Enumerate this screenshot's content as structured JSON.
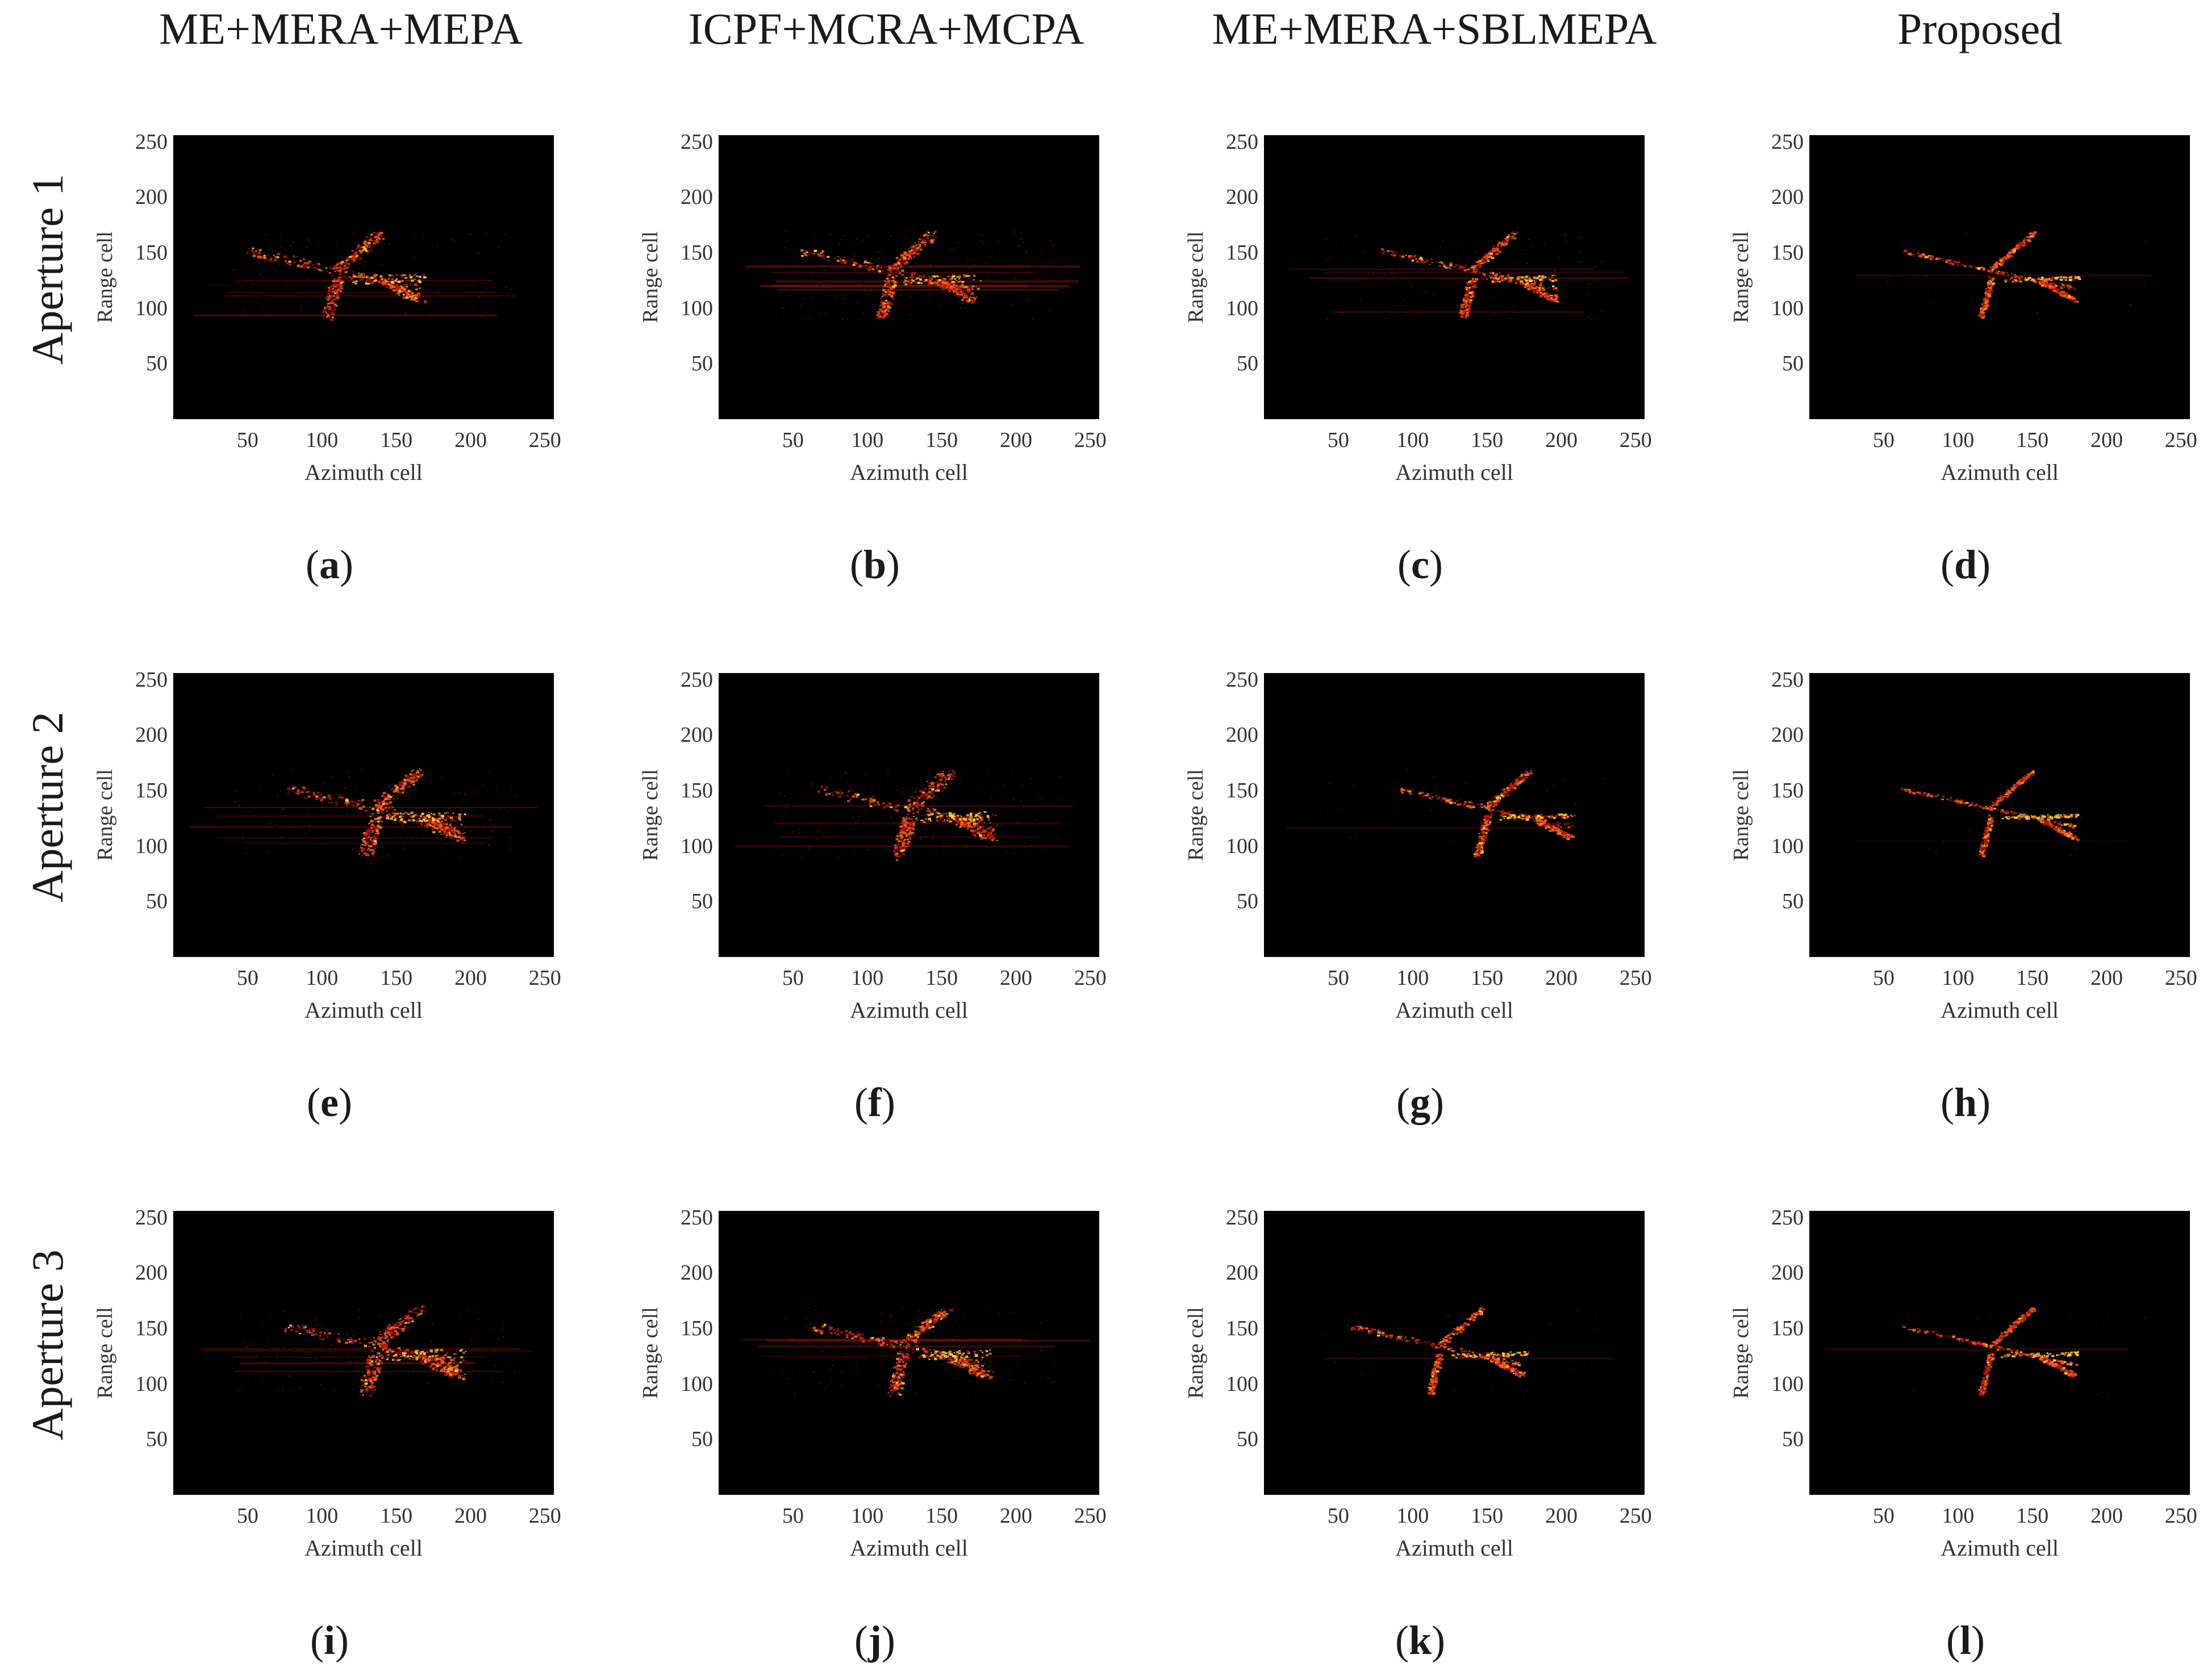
{
  "columns": [
    {
      "label": "ME+MERA+MEPA"
    },
    {
      "label": "ICPF+MCRA+MCPA"
    },
    {
      "label": "ME+MERA+SBLMEPA"
    },
    {
      "label": "Proposed"
    }
  ],
  "rows": [
    {
      "label": "Aperture 1"
    },
    {
      "label": "Aperture 2"
    },
    {
      "label": "Aperture 3"
    }
  ],
  "panels": [
    {
      "id": "a",
      "caption": "a",
      "x_ticks": [
        50,
        100,
        150,
        200,
        250
      ],
      "xlim": [
        0,
        256
      ],
      "y_ticks": [
        50,
        100,
        150,
        200,
        250
      ],
      "ylim": [
        0,
        256
      ]
    },
    {
      "id": "b",
      "caption": "b",
      "x_ticks": [
        50,
        100,
        150,
        200,
        250
      ],
      "xlim": [
        0,
        256
      ],
      "y_ticks": [
        50,
        100,
        150,
        200,
        250
      ],
      "ylim": [
        0,
        256
      ]
    },
    {
      "id": "c",
      "caption": "c",
      "x_ticks": [
        50,
        100,
        150,
        200,
        250
      ],
      "xlim": [
        0,
        256
      ],
      "y_ticks": [
        50,
        100,
        150,
        200,
        250
      ],
      "ylim": [
        0,
        256
      ]
    },
    {
      "id": "d",
      "caption": "d",
      "x_ticks": [
        50,
        100,
        150,
        200,
        250
      ],
      "xlim": [
        0,
        256
      ],
      "y_ticks": [
        50,
        100,
        150,
        200,
        250
      ],
      "ylim": [
        0,
        256
      ]
    },
    {
      "id": "e",
      "caption": "e",
      "x_ticks": [
        50,
        100,
        150,
        200,
        250
      ],
      "xlim": [
        0,
        256
      ],
      "y_ticks": [
        50,
        100,
        150,
        200,
        250
      ],
      "ylim": [
        0,
        256
      ]
    },
    {
      "id": "f",
      "caption": "f",
      "x_ticks": [
        50,
        100,
        150,
        200,
        250
      ],
      "xlim": [
        0,
        256
      ],
      "y_ticks": [
        50,
        100,
        150,
        200,
        250
      ],
      "ylim": [
        0,
        256
      ]
    },
    {
      "id": "g",
      "caption": "g",
      "x_ticks": [
        50,
        100,
        150,
        200,
        250
      ],
      "xlim": [
        0,
        256
      ],
      "y_ticks": [
        50,
        100,
        150,
        200,
        250
      ],
      "ylim": [
        0,
        256
      ]
    },
    {
      "id": "h",
      "caption": "h",
      "x_ticks": [
        50,
        100,
        150,
        200,
        250
      ],
      "xlim": [
        0,
        256
      ],
      "y_ticks": [
        50,
        100,
        150,
        200,
        250
      ],
      "ylim": [
        0,
        256
      ]
    },
    {
      "id": "i",
      "caption": "i",
      "x_ticks": [
        50,
        100,
        150,
        200,
        250
      ],
      "xlim": [
        0,
        256
      ],
      "y_ticks": [
        50,
        100,
        150,
        200,
        250
      ],
      "ylim": [
        0,
        256
      ]
    },
    {
      "id": "j",
      "caption": "j",
      "x_ticks": [
        50,
        100,
        150,
        200,
        250
      ],
      "xlim": [
        0,
        256
      ],
      "y_ticks": [
        50,
        100,
        150,
        200,
        250
      ],
      "ylim": [
        0,
        256
      ]
    },
    {
      "id": "k",
      "caption": "k",
      "x_ticks": [
        50,
        100,
        150,
        200,
        250
      ],
      "xlim": [
        0,
        256
      ],
      "y_ticks": [
        50,
        100,
        150,
        200,
        250
      ],
      "ylim": [
        0,
        256
      ]
    },
    {
      "id": "l",
      "caption": "l",
      "x_ticks": [
        50,
        100,
        150,
        200,
        250
      ],
      "xlim": [
        0,
        256
      ],
      "y_ticks": [
        50,
        100,
        150,
        200,
        250
      ],
      "ylim": [
        0,
        256
      ]
    }
  ],
  "axes": {
    "xlabel": "Azimuth cell",
    "ylabel": "Range cell"
  },
  "colors": {
    "image_background": "#000000",
    "scatter_hot": "#ffd23c",
    "scatter_warm": "#ff5a14",
    "scatter_cool": "#b4140a"
  }
}
